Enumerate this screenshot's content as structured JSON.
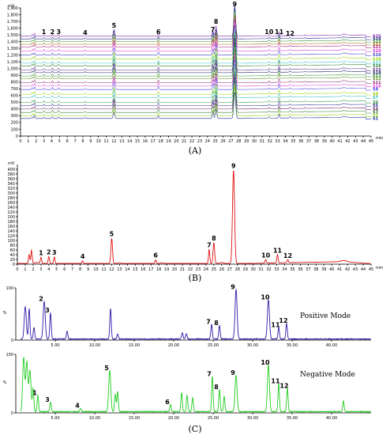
{
  "chart_data": [
    {
      "panel": "(A)",
      "type": "line",
      "ylabel": "mV",
      "xlabel": "min",
      "ylim": [
        0,
        1900
      ],
      "yticks": [
        0,
        100,
        200,
        300,
        400,
        500,
        600,
        700,
        800,
        900,
        1000,
        1100,
        1200,
        1300,
        1400,
        1500,
        1600,
        1700,
        1800,
        1900
      ],
      "ytick_labels": [
        "0",
        "100",
        "200",
        "300",
        "400",
        "500",
        "600",
        "700",
        "800",
        "900",
        "1,000",
        "1,100",
        "1,200",
        "1,300",
        "1,400",
        "1,500",
        "1,600",
        "1,700",
        "1,800",
        "1,900"
      ],
      "xlim": [
        0,
        45
      ],
      "xticks": [
        0,
        1,
        2,
        3,
        4,
        5,
        6,
        7,
        8,
        9,
        10,
        11,
        12,
        13,
        14,
        15,
        16,
        17,
        18,
        19,
        20,
        21,
        22,
        23,
        24,
        25,
        26,
        27,
        28,
        29,
        30,
        31,
        32,
        33,
        34,
        35,
        36,
        37,
        38,
        39,
        40,
        41,
        42,
        43,
        44,
        45
      ],
      "peak_labels": [
        {
          "label": "1",
          "x": 3.0
        },
        {
          "label": "2",
          "x": 4.1
        },
        {
          "label": "3",
          "x": 4.9
        },
        {
          "label": "4",
          "x": 8.3
        },
        {
          "label": "5",
          "x": 12.0
        },
        {
          "label": "6",
          "x": 17.7
        },
        {
          "label": "7",
          "x": 24.7
        },
        {
          "label": "8",
          "x": 25.1
        },
        {
          "label": "9",
          "x": 27.5
        },
        {
          "label": "10",
          "x": 31.9
        },
        {
          "label": "11",
          "x": 33.2
        },
        {
          "label": "12",
          "x": 34.6
        }
      ],
      "series_labels": [
        "S25",
        "S24",
        "S23",
        "S22",
        "S21",
        "S20",
        "S19",
        "S18",
        "S17",
        "S16",
        "S15",
        "S14",
        "S13",
        "S12",
        "S11",
        "S10",
        "S9",
        "S8",
        "S7",
        "S6",
        "S5",
        "S4",
        "S3",
        "S2",
        "S1"
      ],
      "series_colors": [
        "#7a1fa0",
        "#1a1a8c",
        "#2a8a2a",
        "#a06a00",
        "#b0157a",
        "#d62fd6",
        "#3a3ac8",
        "#8fd400",
        "#37c2c2",
        "#2a7a2a",
        "#5a2a8a",
        "#1a1a6a",
        "#2f8f2f",
        "#5a8a1a",
        "#8a2a6a",
        "#e03fe0",
        "#3f3fe0",
        "#9fd000",
        "#2fbcbc",
        "#3a9a3a",
        "#2a2a8a",
        "#6a1a6a",
        "#2f7f2f",
        "#8fcf00",
        "#1a2a9a"
      ],
      "series_offsets": [
        1480,
        1440,
        1400,
        1360,
        1320,
        1260,
        1200,
        1140,
        1080,
        1040,
        980,
        940,
        890,
        850,
        790,
        740,
        690,
        620,
        570,
        500,
        450,
        400,
        350,
        300,
        260
      ]
    },
    {
      "panel": "(B)",
      "type": "line",
      "ylabel": "mV",
      "xlabel": "min",
      "ylim": [
        0,
        420
      ],
      "yticks": [
        0,
        20,
        40,
        60,
        80,
        100,
        120,
        140,
        160,
        180,
        200,
        220,
        240,
        260,
        280,
        300,
        320,
        340,
        360,
        380,
        400
      ],
      "xlim": [
        0,
        45
      ],
      "xticks": [
        0,
        1,
        2,
        3,
        4,
        5,
        6,
        7,
        8,
        9,
        10,
        11,
        12,
        13,
        14,
        15,
        16,
        17,
        18,
        19,
        20,
        21,
        22,
        23,
        24,
        25,
        26,
        27,
        28,
        29,
        30,
        31,
        32,
        33,
        34,
        35,
        36,
        37,
        38,
        39,
        40,
        41,
        42,
        43,
        44,
        45
      ],
      "color": "#e01010",
      "peaks": [
        {
          "label": "",
          "x": 1.5,
          "y": 40
        },
        {
          "label": "",
          "x": 1.8,
          "y": 58
        },
        {
          "label": "1",
          "x": 3.0,
          "y": 28
        },
        {
          "label": "2",
          "x": 4.0,
          "y": 32
        },
        {
          "label": "3",
          "x": 4.7,
          "y": 30
        },
        {
          "label": "4",
          "x": 8.3,
          "y": 14
        },
        {
          "label": "5",
          "x": 12.0,
          "y": 108
        },
        {
          "label": "6",
          "x": 17.6,
          "y": 18
        },
        {
          "label": "7",
          "x": 24.4,
          "y": 62
        },
        {
          "label": "8",
          "x": 25.0,
          "y": 90
        },
        {
          "label": "9",
          "x": 27.5,
          "y": 395
        },
        {
          "label": "10",
          "x": 31.6,
          "y": 18
        },
        {
          "label": "11",
          "x": 33.1,
          "y": 38
        },
        {
          "label": "12",
          "x": 34.4,
          "y": 16
        }
      ]
    },
    {
      "panel": "(C)",
      "type": "line",
      "ylabel": "%",
      "xlim": [
        0,
        45
      ],
      "xticks": [
        5,
        10,
        15,
        20,
        25,
        30,
        35,
        40
      ],
      "xtick_labels": [
        "5.00",
        "10.00",
        "15.00",
        "20.00",
        "25.00",
        "30.00",
        "35.00",
        "40.00"
      ],
      "ylim": [
        0,
        100
      ],
      "yticks": [
        0,
        100
      ],
      "series": [
        {
          "name": "Positive Mode",
          "color": "#3018a8",
          "peaks": [
            {
              "label": "",
              "x": 1.2,
              "y": 62
            },
            {
              "label": "",
              "x": 1.7,
              "y": 58
            },
            {
              "label": "",
              "x": 2.3,
              "y": 22
            },
            {
              "label": "2",
              "x": 3.6,
              "y": 72
            },
            {
              "label": "3",
              "x": 4.4,
              "y": 50
            },
            {
              "label": "",
              "x": 6.5,
              "y": 15
            },
            {
              "label": "",
              "x": 12.0,
              "y": 58
            },
            {
              "label": "",
              "x": 12.9,
              "y": 10
            },
            {
              "label": "",
              "x": 21.1,
              "y": 12
            },
            {
              "label": "",
              "x": 21.6,
              "y": 10
            },
            {
              "label": "7",
              "x": 24.8,
              "y": 28
            },
            {
              "label": "8",
              "x": 25.8,
              "y": 26
            },
            {
              "label": "9",
              "x": 27.9,
              "y": 95
            },
            {
              "label": "10",
              "x": 32.0,
              "y": 75
            },
            {
              "label": "11",
              "x": 33.3,
              "y": 22
            },
            {
              "label": "12",
              "x": 34.3,
              "y": 30
            }
          ]
        },
        {
          "name": "Negative Mode",
          "color": "#22cc22",
          "peaks": [
            {
              "label": "",
              "x": 1.0,
              "y": 92
            },
            {
              "label": "",
              "x": 1.4,
              "y": 85
            },
            {
              "label": "",
              "x": 1.8,
              "y": 70
            },
            {
              "label": "",
              "x": 2.2,
              "y": 40
            },
            {
              "label": "1",
              "x": 2.8,
              "y": 28
            },
            {
              "label": "3",
              "x": 4.4,
              "y": 16
            },
            {
              "label": "4",
              "x": 8.2,
              "y": 6
            },
            {
              "label": "5",
              "x": 11.9,
              "y": 70
            },
            {
              "label": "",
              "x": 12.6,
              "y": 30
            },
            {
              "label": "",
              "x": 12.9,
              "y": 34
            },
            {
              "label": "6",
              "x": 19.6,
              "y": 12
            },
            {
              "label": "",
              "x": 21.0,
              "y": 32
            },
            {
              "label": "",
              "x": 21.7,
              "y": 28
            },
            {
              "label": "",
              "x": 22.4,
              "y": 24
            },
            {
              "label": "7",
              "x": 24.9,
              "y": 60
            },
            {
              "label": "8",
              "x": 25.8,
              "y": 38
            },
            {
              "label": "",
              "x": 26.4,
              "y": 26
            },
            {
              "label": "9",
              "x": 27.9,
              "y": 62
            },
            {
              "label": "10",
              "x": 32.0,
              "y": 80
            },
            {
              "label": "11",
              "x": 33.3,
              "y": 48
            },
            {
              "label": "12",
              "x": 34.4,
              "y": 40
            },
            {
              "label": "",
              "x": 41.5,
              "y": 18
            }
          ]
        }
      ]
    }
  ]
}
